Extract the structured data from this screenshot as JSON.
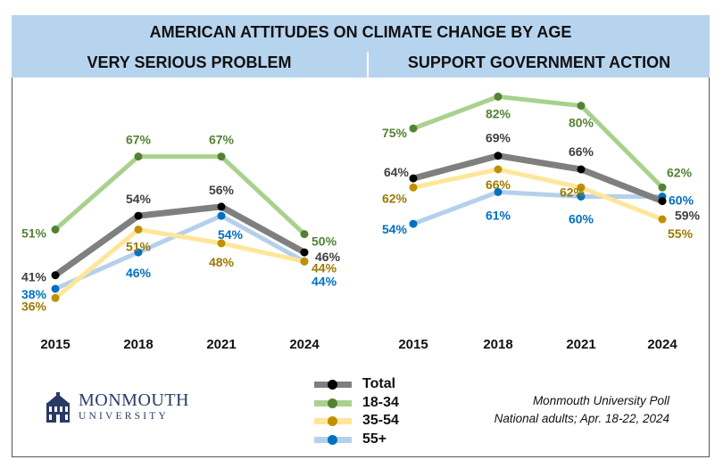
{
  "title": "AMERICAN ATTITUDES ON CLIMATE CHANGE BY AGE",
  "colors": {
    "Total": {
      "line": "#7f7f7f",
      "dot": "#000000",
      "label": "#404040"
    },
    "18-34": {
      "line": "#a9d18e",
      "dot": "#548235",
      "label": "#548235"
    },
    "35-54": {
      "line": "#ffe699",
      "dot": "#bf9000",
      "label": "#9c7a00"
    },
    "55+": {
      "line": "#b4d0ec",
      "dot": "#0070c0",
      "label": "#0070c0"
    }
  },
  "legend": [
    "Total",
    "18-34",
    "35-54",
    "55+"
  ],
  "source_lines": [
    "Monmouth University Poll",
    "National adults; Apr. 18-22, 2024"
  ],
  "logo": {
    "name": "MONMOUTH",
    "sub": "UNIVERSITY"
  },
  "chart_data": [
    {
      "type": "line",
      "title": "VERY SERIOUS PROBLEM",
      "categories": [
        "2015",
        "2018",
        "2021",
        "2024"
      ],
      "ylim": [
        30,
        72
      ],
      "series": [
        {
          "name": "Total",
          "values": [
            41,
            54,
            56,
            46
          ],
          "labels": [
            "41%",
            "54%",
            "56%",
            "46%"
          ]
        },
        {
          "name": "18-34",
          "values": [
            51,
            67,
            67,
            50
          ],
          "labels": [
            "51%",
            "67%",
            "67%",
            "50%"
          ]
        },
        {
          "name": "35-54",
          "values": [
            36,
            51,
            48,
            44
          ],
          "labels": [
            "36%",
            "51%",
            "48%",
            "44%"
          ]
        },
        {
          "name": "55+",
          "values": [
            38,
            46,
            54,
            44
          ],
          "labels": [
            "38%",
            "46%",
            "54%",
            "44%"
          ]
        }
      ]
    },
    {
      "type": "line",
      "title": "SUPPORT GOVERNMENT ACTION",
      "categories": [
        "2015",
        "2018",
        "2021",
        "2024"
      ],
      "ylim": [
        45,
        86
      ],
      "series": [
        {
          "name": "Total",
          "values": [
            64,
            69,
            66,
            59
          ],
          "labels": [
            "64%",
            "69%",
            "66%",
            "59%"
          ]
        },
        {
          "name": "18-34",
          "values": [
            75,
            82,
            80,
            62
          ],
          "labels": [
            "75%",
            "82%",
            "80%",
            "62%"
          ]
        },
        {
          "name": "35-54",
          "values": [
            62,
            66,
            62,
            55
          ],
          "labels": [
            "62%",
            "66%",
            "62%",
            "55%"
          ]
        },
        {
          "name": "55+",
          "values": [
            54,
            61,
            60,
            60
          ],
          "labels": [
            "54%",
            "61%",
            "60%",
            "60%"
          ]
        }
      ]
    }
  ]
}
